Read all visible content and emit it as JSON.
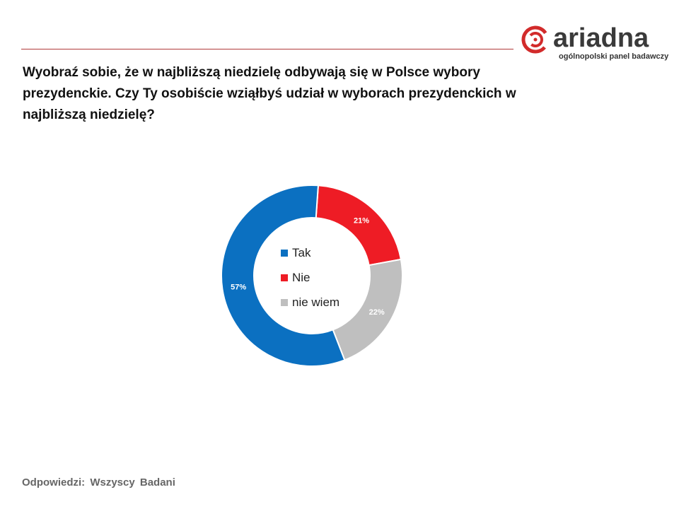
{
  "logo": {
    "name": "ariadna",
    "tagline": "ogólnopolski panel badawczy",
    "color_mark": "#d22b2b",
    "color_word": "#3a3a3a"
  },
  "question": "Wyobraź sobie, że w najbliższą niedzielę odbywają się w Polsce wybory prezydenckie. Czy Ty osobiście wziąłbyś udział w wyborach prezydenckich w najbliższą niedzielę?",
  "footnote": "Odpowiedzi:  Wszyscy  Badani",
  "chart_data": {
    "type": "pie",
    "variant": "donut",
    "title": "",
    "legend_position": "center",
    "slices": [
      {
        "label": "Tak",
        "value": 57,
        "display": "57%",
        "color": "#0b70c1"
      },
      {
        "label": "Nie",
        "value": 21,
        "display": "21%",
        "color": "#ee1c25"
      },
      {
        "label": "nie wiem",
        "value": 22,
        "display": "22%",
        "color": "#bfbfbf"
      }
    ],
    "start_at": "Nie starts at top, clockwise: Nie, nie wiem, Tak"
  }
}
